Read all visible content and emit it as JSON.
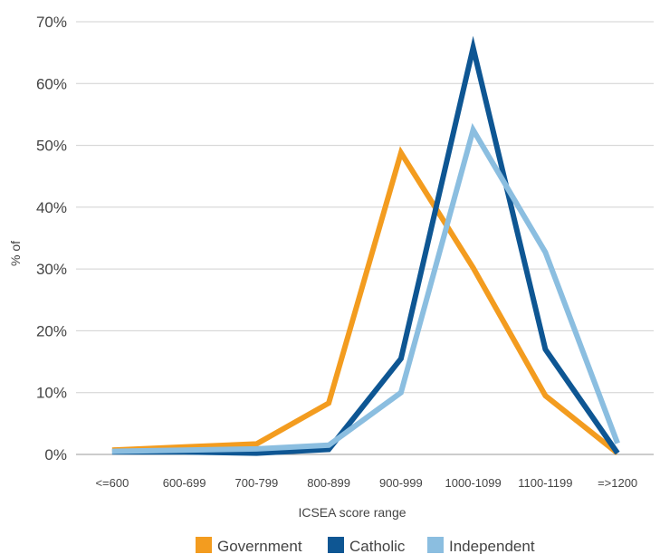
{
  "chart_data": {
    "type": "line",
    "title": "",
    "xlabel": "ICSEA score range",
    "ylabel": "% of",
    "categories": [
      "<=600",
      "600-699",
      "700-799",
      "800-899",
      "900-999",
      "1000-1099",
      "1100-1199",
      "=>1200"
    ],
    "ylim": [
      0,
      70
    ],
    "yticks": [
      "0%",
      "10%",
      "20%",
      "30%",
      "40%",
      "50%",
      "60%",
      "70%"
    ],
    "grid": true,
    "legend_position": "bottom",
    "series": [
      {
        "name": "Government",
        "color": "#F39C1F",
        "values": [
          0.7,
          1.2,
          1.7,
          8.3,
          48.8,
          30.2,
          9.5,
          0.2
        ]
      },
      {
        "name": "Catholic",
        "color": "#0E5693",
        "values": [
          0.4,
          0.4,
          0.2,
          0.8,
          15.5,
          65.8,
          17.0,
          0.2
        ]
      },
      {
        "name": "Independent",
        "color": "#8BBEE0",
        "values": [
          0.5,
          0.7,
          0.9,
          1.5,
          10.0,
          52.5,
          32.7,
          1.8
        ]
      }
    ]
  }
}
